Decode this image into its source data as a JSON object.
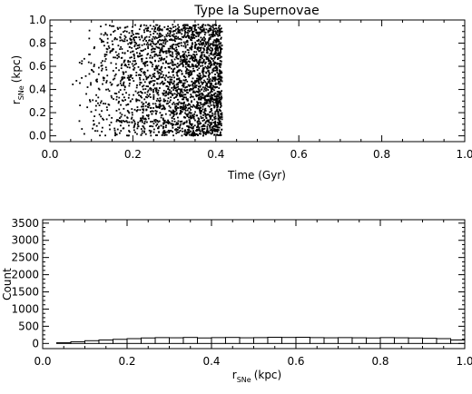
{
  "chart_data": [
    {
      "type": "scatter",
      "title": "Type Ia Supernovae",
      "xlabel": "Time (Gyr)",
      "ylabel_main": "r",
      "ylabel_sub": "SNe",
      "ylabel_unit": "(kpc)",
      "xlim": [
        0.0,
        1.0
      ],
      "ylim": [
        -0.05,
        1.0
      ],
      "xticks": [
        0.0,
        0.2,
        0.4,
        0.6,
        0.8,
        1.0
      ],
      "xtick_labels": [
        "0.0",
        "0.2",
        "0.4",
        "0.6",
        "0.8",
        "1.0"
      ],
      "yticks": [
        0.0,
        0.2,
        0.4,
        0.6,
        0.8,
        1.0
      ],
      "ytick_labels": [
        "0.0",
        "0.2",
        "0.4",
        "0.6",
        "0.8",
        "1.0"
      ],
      "point_count": 2600,
      "time_range": [
        0.045,
        0.415
      ],
      "radius_range": [
        0.0,
        0.96
      ],
      "density_note": "density increases with time, sharp cutoff at ~0.41 Gyr",
      "grid": false
    },
    {
      "type": "bar",
      "xlabel_main": "r",
      "xlabel_sub": "SNe",
      "xlabel_unit": "(kpc)",
      "ylabel": "Count",
      "xlim": [
        0.0,
        1.0
      ],
      "ylim": [
        -150,
        3600
      ],
      "xticks": [
        0.0,
        0.2,
        0.4,
        0.6,
        0.8,
        1.0
      ],
      "xtick_labels": [
        "0.0",
        "0.2",
        "0.4",
        "0.6",
        "0.8",
        "1.0"
      ],
      "yticks": [
        0,
        500,
        1000,
        1500,
        2000,
        2500,
        3000,
        3500
      ],
      "ytick_labels": [
        "0",
        "500",
        "1000",
        "1500",
        "2000",
        "2500",
        "3000",
        "3500"
      ],
      "bin_edges": [
        0.0,
        0.0333,
        0.0667,
        0.1,
        0.1333,
        0.1667,
        0.2,
        0.2333,
        0.2667,
        0.3,
        0.3333,
        0.3667,
        0.4,
        0.4333,
        0.4667,
        0.5,
        0.5333,
        0.5667,
        0.6,
        0.6333,
        0.6667,
        0.7,
        0.7333,
        0.7667,
        0.8,
        0.8333,
        0.8667,
        0.9,
        0.9333,
        0.9667,
        1.0
      ],
      "values": [
        0,
        20,
        50,
        80,
        100,
        120,
        140,
        160,
        170,
        165,
        175,
        160,
        170,
        175,
        165,
        170,
        180,
        175,
        180,
        170,
        165,
        170,
        165,
        160,
        170,
        165,
        160,
        150,
        140,
        100
      ],
      "grid": false
    }
  ]
}
